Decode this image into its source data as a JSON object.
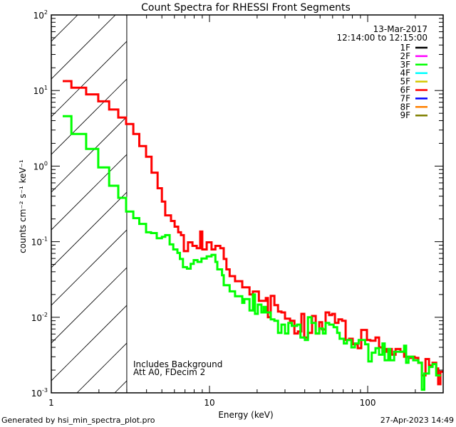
{
  "chart_data": {
    "type": "line",
    "title": "Count Spectra for RHESSI Front Segments",
    "xlabel": "Energy (keV)",
    "ylabel": "counts cm⁻² s⁻¹ keV⁻¹",
    "xscale": "log",
    "yscale": "log",
    "xlim": [
      1,
      300
    ],
    "ylim": [
      0.001,
      100
    ],
    "x_ticks": [
      {
        "value": 1,
        "label": "1"
      },
      {
        "value": 10,
        "label": "10"
      },
      {
        "value": 100,
        "label": "100"
      }
    ],
    "y_ticks": [
      {
        "value": 100,
        "base": "10",
        "exp": "2"
      },
      {
        "value": 10,
        "base": "10",
        "exp": "1"
      },
      {
        "value": 1,
        "base": "10",
        "exp": "0"
      },
      {
        "value": 0.1,
        "base": "10",
        "exp": "-1"
      },
      {
        "value": 0.01,
        "base": "10",
        "exp": "-2"
      },
      {
        "value": 0.001,
        "base": "10",
        "exp": "-3"
      }
    ],
    "hatched_region_keV": [
      1,
      3
    ],
    "threshold_line_keV": 3,
    "date": "13-Mar-2017",
    "time_range": "12:14:00 to 12:15:00",
    "annotations": [
      "Includes Background",
      "Att A0, FDecim 2"
    ],
    "legend": {
      "placement": "top-right",
      "entries": [
        {
          "label": "1F",
          "color": "#000000"
        },
        {
          "label": "2F",
          "color": "#ff00ff"
        },
        {
          "label": "3F",
          "color": "#00ff00"
        },
        {
          "label": "4F",
          "color": "#00ffff"
        },
        {
          "label": "5F",
          "color": "#d4c800"
        },
        {
          "label": "6F",
          "color": "#ff0000"
        },
        {
          "label": "7F",
          "color": "#0000ff"
        },
        {
          "label": "8F",
          "color": "#ff8000"
        },
        {
          "label": "9F",
          "color": "#808000"
        }
      ]
    },
    "series": [
      {
        "name": "6F",
        "color": "#ff0000",
        "end_keV": 300,
        "bins": [
          [
            1.18,
            13.3
          ],
          [
            1.34,
            10.9
          ],
          [
            1.66,
            8.9
          ],
          [
            1.98,
            7.2
          ],
          [
            2.32,
            5.6
          ],
          [
            2.65,
            4.4
          ],
          [
            2.97,
            3.6
          ],
          [
            3.3,
            2.66
          ],
          [
            3.6,
            1.84
          ],
          [
            3.97,
            1.33
          ],
          [
            4.3,
            0.82
          ],
          [
            4.7,
            0.51
          ],
          [
            5.0,
            0.34
          ],
          [
            5.25,
            0.223
          ],
          [
            5.71,
            0.188
          ],
          [
            6.02,
            0.158
          ],
          [
            6.34,
            0.133
          ],
          [
            6.6,
            0.122
          ],
          [
            6.88,
            0.075
          ],
          [
            7.32,
            0.098
          ],
          [
            7.8,
            0.088
          ],
          [
            8.3,
            0.082
          ],
          [
            8.74,
            0.136
          ],
          [
            9.0,
            0.079
          ],
          [
            9.6,
            0.098
          ],
          [
            10.3,
            0.079
          ],
          [
            10.9,
            0.088
          ],
          [
            11.7,
            0.082
          ],
          [
            12.3,
            0.059
          ],
          [
            12.8,
            0.043
          ],
          [
            13.4,
            0.035
          ],
          [
            14.5,
            0.03
          ],
          [
            16.1,
            0.0249
          ],
          [
            17.9,
            0.02
          ],
          [
            18.8,
            0.0219
          ],
          [
            20.5,
            0.0165
          ],
          [
            22.7,
            0.018
          ],
          [
            23.4,
            0.01
          ],
          [
            24.4,
            0.0192
          ],
          [
            25.7,
            0.0145
          ],
          [
            27.1,
            0.0119
          ],
          [
            28.5,
            0.0116
          ],
          [
            30.0,
            0.0096
          ],
          [
            32.3,
            0.009
          ],
          [
            34.4,
            0.0061
          ],
          [
            36.2,
            0.0065
          ],
          [
            38.1,
            0.0111
          ],
          [
            39.7,
            0.0054
          ],
          [
            41.9,
            0.0062
          ],
          [
            44.5,
            0.0104
          ],
          [
            46.9,
            0.0061
          ],
          [
            49.4,
            0.0086
          ],
          [
            51.5,
            0.0069
          ],
          [
            54.2,
            0.0116
          ],
          [
            57.1,
            0.0107
          ],
          [
            59.6,
            0.0111
          ],
          [
            62.1,
            0.0084
          ],
          [
            65.3,
            0.0094
          ],
          [
            68.9,
            0.009
          ],
          [
            72.5,
            0.005
          ],
          [
            76.4,
            0.0052
          ],
          [
            80.4,
            0.0044
          ],
          [
            86.5,
            0.0039
          ],
          [
            91.0,
            0.0068
          ],
          [
            98.9,
            0.005
          ],
          [
            104,
            0.0049
          ],
          [
            112,
            0.0054
          ],
          [
            118,
            0.004
          ],
          [
            124,
            0.0035
          ],
          [
            131,
            0.0038
          ],
          [
            142,
            0.0032
          ],
          [
            150,
            0.0038
          ],
          [
            161,
            0.0035
          ],
          [
            170,
            0.003
          ],
          [
            181,
            0.0029
          ],
          [
            188,
            0.003
          ],
          [
            198,
            0.0029
          ],
          [
            209,
            0.0025
          ],
          [
            220,
            0.0017
          ],
          [
            232,
            0.0028
          ],
          [
            244,
            0.0023
          ],
          [
            257,
            0.0025
          ],
          [
            271,
            0.0021
          ],
          [
            279,
            0.0013
          ],
          [
            288,
            0.0019
          ]
        ]
      },
      {
        "name": "3F",
        "color": "#00ff00",
        "end_keV": 290,
        "bins": [
          [
            1.18,
            4.57
          ],
          [
            1.34,
            2.66
          ],
          [
            1.66,
            1.69
          ],
          [
            1.98,
            0.96
          ],
          [
            2.32,
            0.55
          ],
          [
            2.65,
            0.38
          ],
          [
            2.97,
            0.25
          ],
          [
            3.3,
            0.205
          ],
          [
            3.6,
            0.172
          ],
          [
            3.97,
            0.133
          ],
          [
            4.27,
            0.13
          ],
          [
            4.64,
            0.111
          ],
          [
            5.0,
            0.116
          ],
          [
            5.25,
            0.122
          ],
          [
            5.6,
            0.092
          ],
          [
            5.9,
            0.079
          ],
          [
            6.27,
            0.071
          ],
          [
            6.5,
            0.059
          ],
          [
            6.8,
            0.046
          ],
          [
            7.2,
            0.044
          ],
          [
            7.6,
            0.051
          ],
          [
            7.95,
            0.057
          ],
          [
            8.4,
            0.054
          ],
          [
            8.9,
            0.06
          ],
          [
            9.6,
            0.064
          ],
          [
            10.3,
            0.067
          ],
          [
            10.9,
            0.054
          ],
          [
            11.2,
            0.043
          ],
          [
            12.0,
            0.036
          ],
          [
            12.3,
            0.0266
          ],
          [
            13.4,
            0.022
          ],
          [
            14.5,
            0.019
          ],
          [
            16.1,
            0.0155
          ],
          [
            16.6,
            0.0174
          ],
          [
            17.9,
            0.0123
          ],
          [
            18.8,
            0.02
          ],
          [
            19.4,
            0.0111
          ],
          [
            20.2,
            0.0147
          ],
          [
            21.3,
            0.0116
          ],
          [
            22.0,
            0.0137
          ],
          [
            22.7,
            0.0116
          ],
          [
            24.4,
            0.0094
          ],
          [
            25.7,
            0.009
          ],
          [
            27.1,
            0.0062
          ],
          [
            28.5,
            0.008
          ],
          [
            30.0,
            0.0061
          ],
          [
            31.5,
            0.0084
          ],
          [
            33.1,
            0.0077
          ],
          [
            35.8,
            0.008
          ],
          [
            37.6,
            0.0054
          ],
          [
            40.1,
            0.005
          ],
          [
            41.9,
            0.01
          ],
          [
            44.1,
            0.0084
          ],
          [
            46.9,
            0.0061
          ],
          [
            49.4,
            0.0071
          ],
          [
            52.1,
            0.0061
          ],
          [
            54.2,
            0.0084
          ],
          [
            57.1,
            0.008
          ],
          [
            60.9,
            0.0074
          ],
          [
            64.1,
            0.0062
          ],
          [
            66.5,
            0.0052
          ],
          [
            70.7,
            0.0045
          ],
          [
            73.9,
            0.005
          ],
          [
            78.9,
            0.004
          ],
          [
            83.0,
            0.0045
          ],
          [
            87.7,
            0.005
          ],
          [
            96.3,
            0.0044
          ],
          [
            101,
            0.0026
          ],
          [
            106,
            0.0034
          ],
          [
            112,
            0.0039
          ],
          [
            118,
            0.0032
          ],
          [
            124,
            0.0045
          ],
          [
            128,
            0.0027
          ],
          [
            135,
            0.0038
          ],
          [
            139,
            0.0027
          ],
          [
            147,
            0.0035
          ],
          [
            158,
            0.0035
          ],
          [
            170,
            0.0042
          ],
          [
            175,
            0.0025
          ],
          [
            181,
            0.003
          ],
          [
            194,
            0.0027
          ],
          [
            209,
            0.0025
          ],
          [
            220,
            0.0011
          ],
          [
            228,
            0.0018
          ],
          [
            244,
            0.0022
          ],
          [
            257,
            0.0024
          ],
          [
            271,
            0.0017
          ]
        ]
      }
    ]
  },
  "footer": {
    "generated_by": "Generated by hsi_min_spectra_plot.pro",
    "timestamp": "27-Apr-2023 14:49"
  }
}
